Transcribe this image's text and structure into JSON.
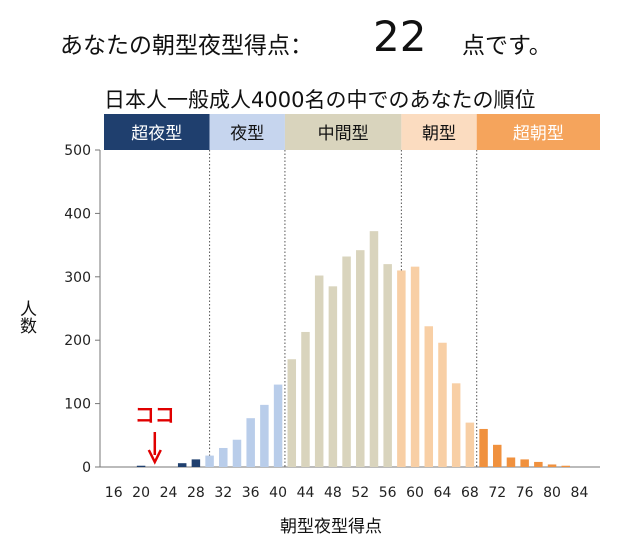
{
  "headline": {
    "prefix": "あなたの朝型夜型得点：",
    "score": "22",
    "suffix": "点です。"
  },
  "subtitle": "日本人一般成人4000名の中でのあなたの順位",
  "marker": {
    "label": "ココ",
    "x": 22,
    "color": "#e00000"
  },
  "chart_data": {
    "type": "bar",
    "title": "",
    "xlabel": "朝型夜型得点",
    "ylabel": "人数",
    "ylim": [
      0,
      500
    ],
    "xlim": [
      14,
      87
    ],
    "yticks": [
      0,
      100,
      200,
      300,
      400,
      500
    ],
    "xticks": [
      16,
      20,
      24,
      28,
      32,
      36,
      40,
      44,
      48,
      52,
      56,
      60,
      64,
      68,
      72,
      76,
      80,
      84
    ],
    "grid": false,
    "categories": [
      {
        "label": "超夜型",
        "from": 16,
        "to": 30,
        "header_color": "#1f3f6e",
        "bar_color": "#1f3f6e",
        "text_color": "#ffffff"
      },
      {
        "label": "夜型",
        "from": 30,
        "to": 41,
        "header_color": "#c6d5ee",
        "bar_color": "#b9cdea",
        "text_color": "#111111"
      },
      {
        "label": "中間型",
        "from": 41,
        "to": 58,
        "header_color": "#d9d4bd",
        "bar_color": "#d9d4bd",
        "text_color": "#111111"
      },
      {
        "label": "朝型",
        "from": 58,
        "to": 69,
        "header_color": "#fbdcc0",
        "bar_color": "#f8cfa5",
        "text_color": "#111111"
      },
      {
        "label": "超朝型",
        "from": 69,
        "to": 86,
        "header_color": "#f5a45c",
        "bar_color": "#f0913e",
        "text_color": "#ffffff"
      }
    ],
    "dividers": [
      30,
      41,
      58,
      69
    ],
    "x": [
      16,
      18,
      20,
      22,
      24,
      26,
      28,
      30,
      32,
      34,
      36,
      38,
      40,
      42,
      44,
      46,
      48,
      50,
      52,
      54,
      56,
      58,
      60,
      62,
      64,
      66,
      68,
      70,
      72,
      74,
      76,
      78,
      80,
      82,
      84
    ],
    "values": [
      0,
      0,
      2,
      0,
      0,
      6,
      12,
      18,
      30,
      43,
      77,
      98,
      130,
      170,
      213,
      302,
      285,
      332,
      342,
      372,
      320,
      310,
      316,
      222,
      196,
      132,
      70,
      60,
      35,
      15,
      12,
      8,
      4,
      2,
      0
    ]
  }
}
